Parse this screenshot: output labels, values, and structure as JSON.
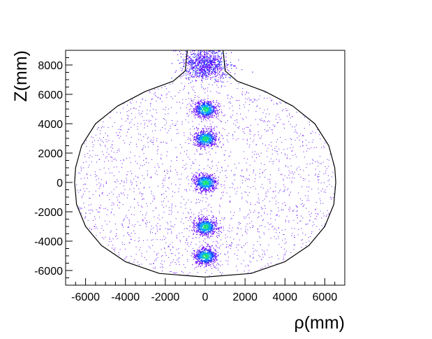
{
  "chart_data": {
    "type": "scatter",
    "title": "",
    "xlabel": "ρ(mm)",
    "ylabel": "Z(mm)",
    "xlim": [
      -7000,
      7000
    ],
    "ylim": [
      -7000,
      9000
    ],
    "x_ticks": [
      -6000,
      -4000,
      -2000,
      0,
      2000,
      4000,
      6000
    ],
    "y_ticks": [
      -6000,
      -4000,
      -2000,
      0,
      2000,
      4000,
      6000,
      8000
    ],
    "grid": false,
    "legend": "none",
    "outline": {
      "name": "",
      "points": [
        [
          -900,
          9000
        ],
        [
          -1000,
          7600
        ],
        [
          -1600,
          6900
        ],
        [
          -3000,
          6200
        ],
        [
          -4400,
          5200
        ],
        [
          -5500,
          4000
        ],
        [
          -6200,
          2500
        ],
        [
          -6500,
          1000
        ],
        [
          -6550,
          0
        ],
        [
          -6450,
          -1500
        ],
        [
          -6000,
          -3000
        ],
        [
          -5200,
          -4300
        ],
        [
          -4000,
          -5400
        ],
        [
          -2300,
          -6200
        ],
        [
          0,
          -6450
        ],
        [
          2300,
          -6200
        ],
        [
          4000,
          -5400
        ],
        [
          5200,
          -4300
        ],
        [
          6000,
          -3000
        ],
        [
          6450,
          -1500
        ],
        [
          6550,
          0
        ],
        [
          6500,
          1000
        ],
        [
          6200,
          2500
        ],
        [
          5500,
          4000
        ],
        [
          4400,
          5200
        ],
        [
          3000,
          6200
        ],
        [
          1600,
          6900
        ],
        [
          1000,
          7600
        ],
        [
          900,
          9000
        ]
      ]
    },
    "clusters": [
      {
        "x": 0,
        "z": 8000,
        "spread_x": 550,
        "spread_z": 500
      },
      {
        "x": 0,
        "z": 5000,
        "spread_x": 280,
        "spread_z": 280
      },
      {
        "x": 0,
        "z": 3000,
        "spread_x": 280,
        "spread_z": 280
      },
      {
        "x": 0,
        "z": 0,
        "spread_x": 280,
        "spread_z": 280
      },
      {
        "x": 0,
        "z": -3000,
        "spread_x": 280,
        "spread_z": 280
      },
      {
        "x": 0,
        "z": -5000,
        "spread_x": 280,
        "spread_z": 280
      }
    ],
    "colors": {
      "background_points": "#6a00ff",
      "sparse_points": "#3b1bd6",
      "cluster_ring": "#1a3bff",
      "cluster_mid": "#00a6ff",
      "cluster_core": "#19e07a",
      "outline": "#000000",
      "frame": "#000000"
    }
  }
}
